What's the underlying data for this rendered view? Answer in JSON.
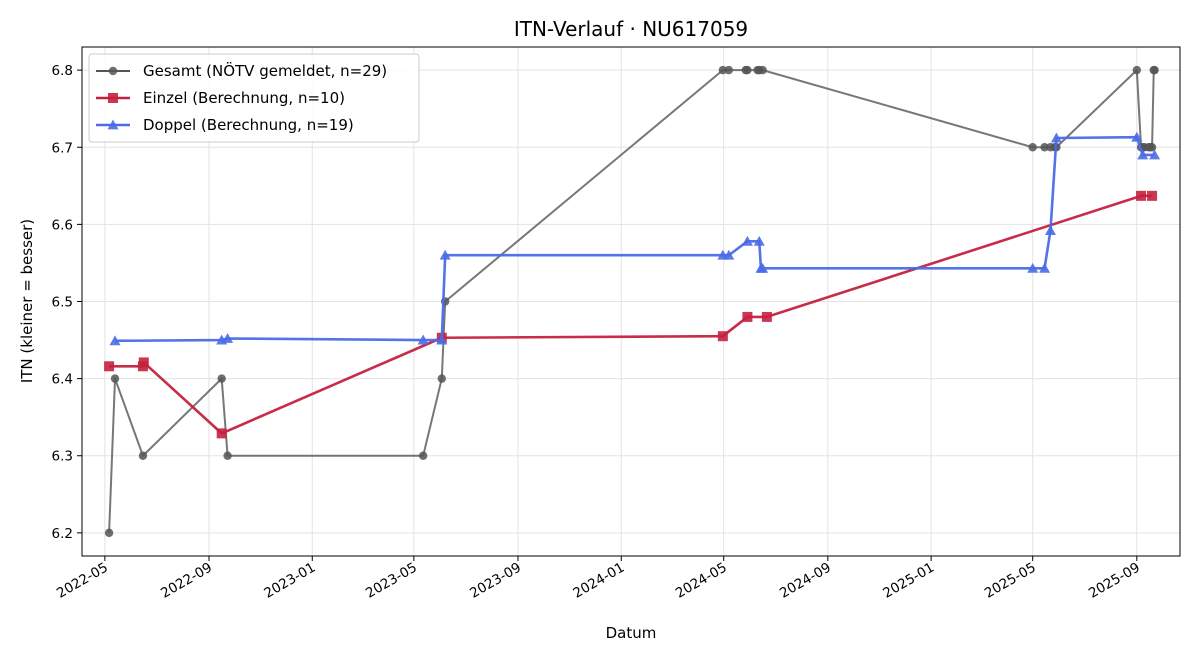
{
  "chart_data": {
    "type": "line",
    "title": "ITN-Verlauf · NU617059",
    "xlabel": "Datum",
    "ylabel": "ITN  (kleiner = besser)",
    "x_type": "date",
    "xlim": [
      "2022-04-04",
      "2025-10-22"
    ],
    "ylim": [
      6.17,
      6.83
    ],
    "x_ticks": [
      "2022-05-01",
      "2022-09-01",
      "2023-01-01",
      "2023-05-01",
      "2023-09-01",
      "2024-01-01",
      "2024-05-01",
      "2024-09-01",
      "2025-01-01",
      "2025-05-01",
      "2025-09-01"
    ],
    "x_tick_labels": [
      "2022-05",
      "2022-09",
      "2023-01",
      "2023-05",
      "2023-09",
      "2024-01",
      "2024-05",
      "2024-09",
      "2025-01",
      "2025-05",
      "2025-09"
    ],
    "y_ticks": [
      6.2,
      6.3,
      6.4,
      6.5,
      6.6,
      6.7,
      6.8
    ],
    "y_tick_labels": [
      "6.2",
      "6.3",
      "6.4",
      "6.5",
      "6.6",
      "6.7",
      "6.8"
    ],
    "grid": true,
    "legend_position": "top-left",
    "series": [
      {
        "name": "Gesamt (NÖTV gemeldet, n=29)",
        "color": "#555555",
        "marker": "circle",
        "points": [
          [
            "2022-05-06",
            6.2
          ],
          [
            "2022-05-13",
            6.4
          ],
          [
            "2022-06-15",
            6.3
          ],
          [
            "2022-09-16",
            6.4
          ],
          [
            "2022-09-23",
            6.3
          ],
          [
            "2023-05-12",
            6.3
          ],
          [
            "2023-06-03",
            6.4
          ],
          [
            "2023-06-07",
            6.5
          ],
          [
            "2024-04-30",
            6.8
          ],
          [
            "2024-05-07",
            6.8
          ],
          [
            "2024-05-27",
            6.8
          ],
          [
            "2024-05-29",
            6.8
          ],
          [
            "2024-06-10",
            6.8
          ],
          [
            "2024-06-12",
            6.8
          ],
          [
            "2024-06-16",
            6.8
          ],
          [
            "2025-05-01",
            6.7
          ],
          [
            "2025-05-15",
            6.7
          ],
          [
            "2025-05-22",
            6.7
          ],
          [
            "2025-05-27",
            6.7
          ],
          [
            "2025-05-29",
            6.7
          ],
          [
            "2025-09-01",
            6.8
          ],
          [
            "2025-09-06",
            6.7
          ],
          [
            "2025-09-08",
            6.7
          ],
          [
            "2025-09-10",
            6.7
          ],
          [
            "2025-09-15",
            6.7
          ],
          [
            "2025-09-17",
            6.7
          ],
          [
            "2025-09-19",
            6.7
          ],
          [
            "2025-09-21",
            6.8
          ],
          [
            "2025-09-22",
            6.8
          ]
        ]
      },
      {
        "name": "Einzel (Berechnung, n=10)",
        "color": "#c4213e",
        "marker": "square",
        "points": [
          [
            "2022-05-06",
            6.416
          ],
          [
            "2022-06-15",
            6.416
          ],
          [
            "2022-06-16",
            6.421
          ],
          [
            "2022-09-16",
            6.329
          ],
          [
            "2023-06-03",
            6.453
          ],
          [
            "2024-04-30",
            6.455
          ],
          [
            "2024-05-29",
            6.48
          ],
          [
            "2024-06-21",
            6.48
          ],
          [
            "2025-09-06",
            6.637
          ],
          [
            "2025-09-19",
            6.637
          ]
        ]
      },
      {
        "name": "Doppel (Berechnung, n=19)",
        "color": "#4a6be5",
        "marker": "triangle",
        "points": [
          [
            "2022-05-13",
            6.449
          ],
          [
            "2022-09-16",
            6.45
          ],
          [
            "2022-09-23",
            6.452
          ],
          [
            "2023-05-12",
            6.45
          ],
          [
            "2023-06-03",
            6.45
          ],
          [
            "2023-06-07",
            6.56
          ],
          [
            "2024-04-30",
            6.56
          ],
          [
            "2024-05-07",
            6.56
          ],
          [
            "2024-05-29",
            6.578
          ],
          [
            "2024-06-12",
            6.578
          ],
          [
            "2024-06-14",
            6.543
          ],
          [
            "2024-06-16",
            6.543
          ],
          [
            "2025-05-01",
            6.543
          ],
          [
            "2025-05-15",
            6.543
          ],
          [
            "2025-05-22",
            6.592
          ],
          [
            "2025-05-29",
            6.712
          ],
          [
            "2025-09-01",
            6.713
          ],
          [
            "2025-09-08",
            6.69
          ],
          [
            "2025-09-22",
            6.69
          ]
        ]
      }
    ]
  }
}
